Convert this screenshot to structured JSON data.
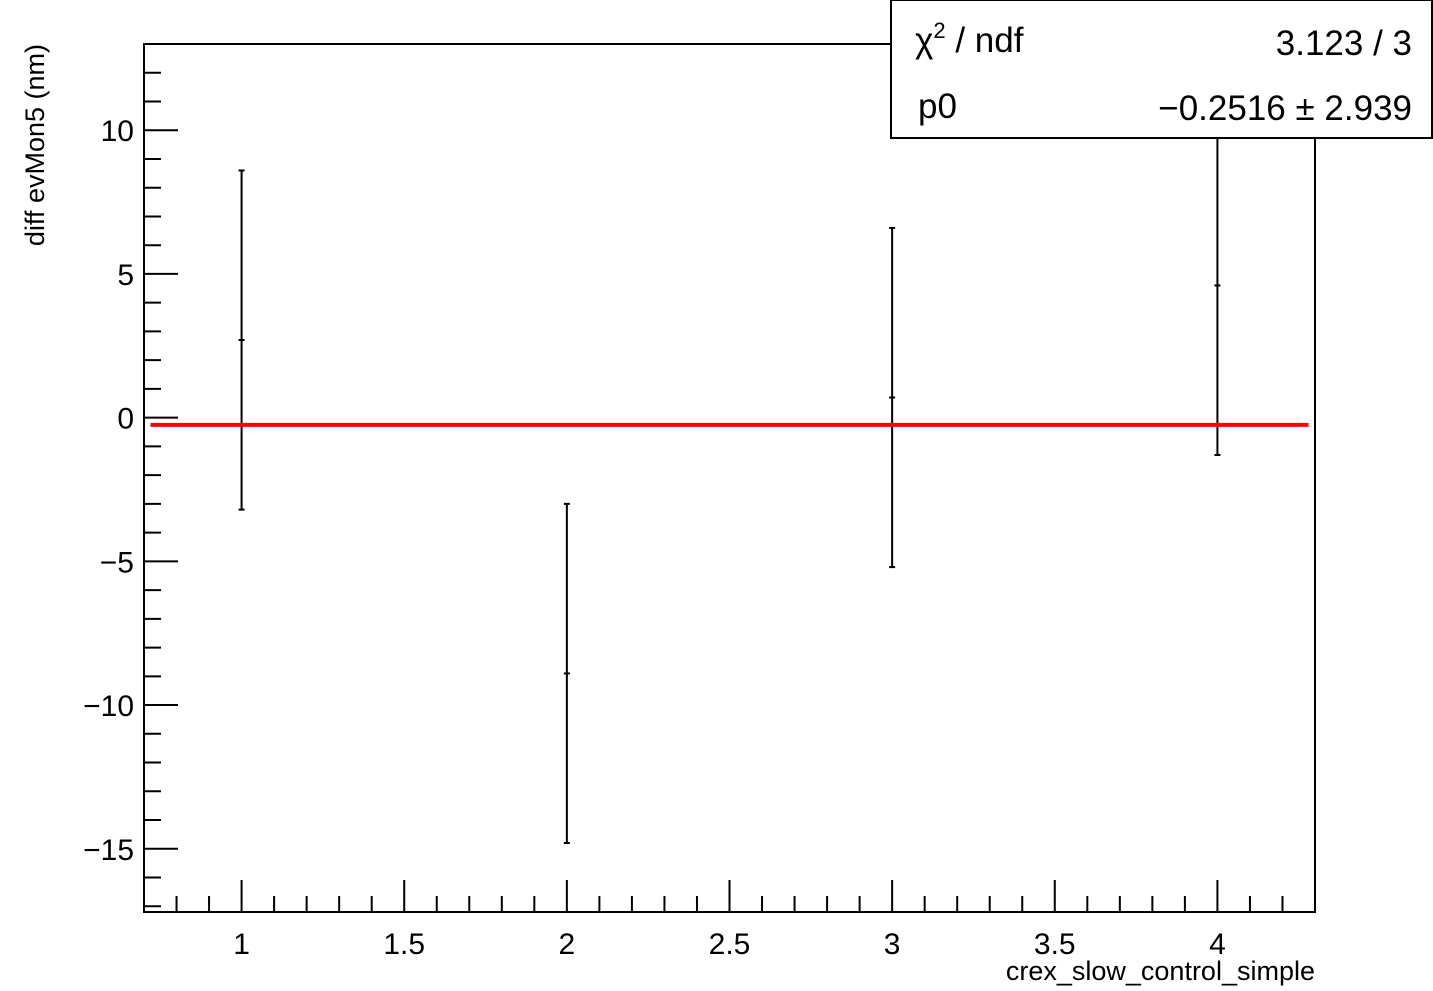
{
  "chart_data": {
    "type": "scatter",
    "title": "",
    "xlabel": "crex_slow_control_simple",
    "ylabel": "diff evMon5 (nm)",
    "xlim": [
      0.7,
      4.3
    ],
    "ylim": [
      -17.2,
      13.0
    ],
    "x_ticks": [
      1,
      1.5,
      2,
      2.5,
      3,
      3.5,
      4
    ],
    "x_tick_labels": [
      "1",
      "1.5",
      "2",
      "2.5",
      "3",
      "3.5",
      "4"
    ],
    "y_ticks": [
      -15,
      -10,
      -5,
      0,
      5,
      10
    ],
    "y_tick_labels": [
      "−15",
      "−10",
      "−5",
      "0",
      "5",
      "10"
    ],
    "grid": false,
    "points": [
      {
        "x": 1,
        "y": 2.7,
        "err": 5.9
      },
      {
        "x": 2,
        "y": -8.9,
        "err": 5.9
      },
      {
        "x": 3,
        "y": 0.7,
        "err": 5.9
      },
      {
        "x": 4,
        "y": 4.6,
        "err": 5.9
      }
    ],
    "fit": {
      "name": "pol0",
      "p0": -0.2516,
      "x_range": [
        0.72,
        4.28
      ],
      "color": "#ff0000"
    },
    "stats_box": {
      "chi2_symbol": "χ",
      "chi2_sup": "2",
      "chi2_rest": " / ndf",
      "chi2_value": "3.123 / 3",
      "p0_label": "p0",
      "p0_value": "−0.2516 ± 2.939"
    }
  }
}
